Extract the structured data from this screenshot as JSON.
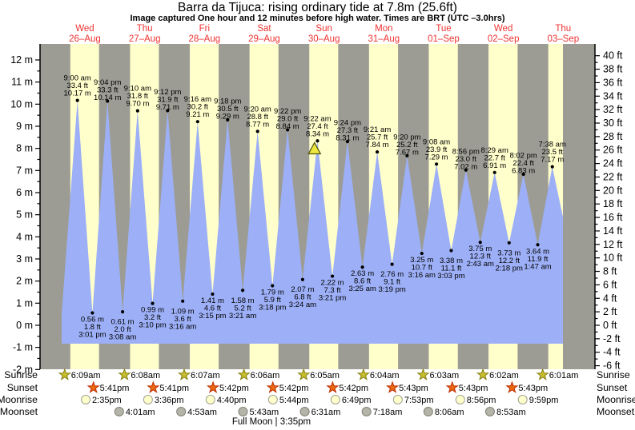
{
  "chart_data": {
    "type": "area",
    "title": "Barra da Tijuca: rising  ordinary tide at 7.8m (25.6ft)",
    "subtitle": "Image captured One hour and 12 minutes before high water. Times are BRT (UTC –3.0hrs)",
    "days": [
      {
        "weekday": "Wed",
        "date": "26–Aug"
      },
      {
        "weekday": "Thu",
        "date": "27–Aug"
      },
      {
        "weekday": "Fri",
        "date": "28–Aug"
      },
      {
        "weekday": "Sat",
        "date": "29–Aug"
      },
      {
        "weekday": "Sun",
        "date": "30–Aug"
      },
      {
        "weekday": "Mon",
        "date": "31–Aug"
      },
      {
        "weekday": "Tue",
        "date": "01–Sep"
      },
      {
        "weekday": "Wed",
        "date": "02–Sep"
      },
      {
        "weekday": "Thu",
        "date": "03–Sep"
      }
    ],
    "y_axis_left": {
      "unit": "m",
      "min": -2,
      "max": 12,
      "step": 1
    },
    "y_axis_right": {
      "unit": "ft",
      "min": -6,
      "max": 40,
      "step": 2
    },
    "tide_events": [
      {
        "type": "high",
        "day": 0,
        "time": "9:00 am",
        "ft": "33.4",
        "m": "10.17"
      },
      {
        "type": "low",
        "day": 0,
        "time": "3:01 pm",
        "ft": "1.8",
        "m": "0.56"
      },
      {
        "type": "high",
        "day": 0,
        "time": "9:04 pm",
        "ft": "33.3",
        "m": "10.14"
      },
      {
        "type": "low",
        "day": 1,
        "time": "3:08 am",
        "ft": "2.0",
        "m": "0.61"
      },
      {
        "type": "high",
        "day": 1,
        "time": "9:10 am",
        "ft": "31.8",
        "m": "9.70"
      },
      {
        "type": "low",
        "day": 1,
        "time": "3:10 pm",
        "ft": "3.2",
        "m": "0.99"
      },
      {
        "type": "high",
        "day": 1,
        "time": "9:12 pm",
        "ft": "31.9",
        "m": "9.71"
      },
      {
        "type": "low",
        "day": 2,
        "time": "3:16 am",
        "ft": "3.6",
        "m": "1.09"
      },
      {
        "type": "high",
        "day": 2,
        "time": "9:16 am",
        "ft": "30.2",
        "m": "9.21"
      },
      {
        "type": "low",
        "day": 2,
        "time": "3:15 pm",
        "ft": "4.6",
        "m": "1.41"
      },
      {
        "type": "high",
        "day": 2,
        "time": "9:18 pm",
        "ft": "30.5",
        "m": "9.29"
      },
      {
        "type": "low",
        "day": 3,
        "time": "3:21 am",
        "ft": "5.2",
        "m": "1.58"
      },
      {
        "type": "high",
        "day": 3,
        "time": "9:20 am",
        "ft": "28.8",
        "m": "8.77"
      },
      {
        "type": "low",
        "day": 3,
        "time": "3:18 pm",
        "ft": "5.9",
        "m": "1.79"
      },
      {
        "type": "high",
        "day": 3,
        "time": "9:22 pm",
        "ft": "29.0",
        "m": "8.84"
      },
      {
        "type": "low",
        "day": 4,
        "time": "3:24 am",
        "ft": "6.8",
        "m": "2.07"
      },
      {
        "type": "high",
        "day": 4,
        "time": "9:22 am",
        "ft": "27.4",
        "m": "8.34"
      },
      {
        "type": "low",
        "day": 4,
        "time": "3:21 pm",
        "ft": "7.3",
        "m": "2.22"
      },
      {
        "type": "high",
        "day": 4,
        "time": "9:24 pm",
        "ft": "27.3",
        "m": "8.31"
      },
      {
        "type": "low",
        "day": 5,
        "time": "3:25 am",
        "ft": "8.6",
        "m": "2.63"
      },
      {
        "type": "high",
        "day": 5,
        "time": "9:21 am",
        "ft": "25.7",
        "m": "7.84"
      },
      {
        "type": "low",
        "day": 5,
        "time": "3:19 pm",
        "ft": "9.1",
        "m": "2.76"
      },
      {
        "type": "high",
        "day": 5,
        "time": "9:20 pm",
        "ft": "25.2",
        "m": "7.67"
      },
      {
        "type": "low",
        "day": 6,
        "time": "3:16 am",
        "ft": "10.7",
        "m": "3.25"
      },
      {
        "type": "high",
        "day": 6,
        "time": "9:08 am",
        "ft": "23.9",
        "m": "7.29"
      },
      {
        "type": "low",
        "day": 6,
        "time": "3:03 pm",
        "ft": "11.1",
        "m": "3.38"
      },
      {
        "type": "high",
        "day": 6,
        "time": "8:56 pm",
        "ft": "23.0",
        "m": "7.02"
      },
      {
        "type": "low",
        "day": 7,
        "time": "2:43 am",
        "ft": "12.3",
        "m": "3.75"
      },
      {
        "type": "high",
        "day": 7,
        "time": "8:29 am",
        "ft": "22.7",
        "m": "6.91"
      },
      {
        "type": "low",
        "day": 7,
        "time": "2:18 pm",
        "ft": "12.2",
        "m": "3.73"
      },
      {
        "type": "high",
        "day": 7,
        "time": "8:02 pm",
        "ft": "22.4",
        "m": "6.83"
      },
      {
        "type": "low",
        "day": 8,
        "time": "1:47 am",
        "ft": "11.9",
        "m": "3.64"
      },
      {
        "type": "high",
        "day": 8,
        "time": "7:38 am",
        "ft": "23.5",
        "m": "7.17"
      }
    ],
    "current_time_marker": {
      "day": 4,
      "time": "8:10 am",
      "below_high": "9:22 am",
      "shape": "triangle"
    },
    "astro": {
      "row_labels": [
        "Sunrise",
        "Sunset",
        "Moonrise",
        "Moonset"
      ],
      "sunrise": [
        {
          "day": 0,
          "time": "6:09am"
        },
        {
          "day": 1,
          "time": "6:08am"
        },
        {
          "day": 2,
          "time": "6:07am"
        },
        {
          "day": 3,
          "time": "6:06am"
        },
        {
          "day": 4,
          "time": "6:05am"
        },
        {
          "day": 5,
          "time": "6:04am"
        },
        {
          "day": 6,
          "time": "6:03am"
        },
        {
          "day": 7,
          "time": "6:02am"
        },
        {
          "day": 8,
          "time": "6:01am"
        }
      ],
      "sunset": [
        {
          "day": 0,
          "time": "5:41pm"
        },
        {
          "day": 1,
          "time": "5:41pm"
        },
        {
          "day": 2,
          "time": "5:42pm"
        },
        {
          "day": 3,
          "time": "5:42pm"
        },
        {
          "day": 4,
          "time": "5:42pm"
        },
        {
          "day": 5,
          "time": "5:43pm"
        },
        {
          "day": 6,
          "time": "5:43pm"
        },
        {
          "day": 7,
          "time": "5:43pm"
        }
      ],
      "moonrise": [
        {
          "day": 0,
          "time": "2:35pm"
        },
        {
          "day": 1,
          "time": "3:36pm"
        },
        {
          "day": 2,
          "time": "4:40pm"
        },
        {
          "day": 3,
          "time": "5:44pm"
        },
        {
          "day": 4,
          "time": "6:49pm"
        },
        {
          "day": 5,
          "time": "7:53pm"
        },
        {
          "day": 6,
          "time": "8:56pm"
        },
        {
          "day": 7,
          "time": "9:59pm"
        }
      ],
      "moonset": [
        {
          "day": 1,
          "time": "4:01am"
        },
        {
          "day": 2,
          "time": "4:53am"
        },
        {
          "day": 3,
          "time": "5:43am"
        },
        {
          "day": 4,
          "time": "6:31am"
        },
        {
          "day": 5,
          "time": "7:18am"
        },
        {
          "day": 6,
          "time": "8:06am"
        },
        {
          "day": 7,
          "time": "8:53am"
        }
      ],
      "moon_phase": {
        "name": "Full Moon",
        "time": "3:35pm"
      }
    },
    "colors": {
      "night_band": "#9c9c94",
      "day_band": "#ffffcc",
      "tide_fill": "#9db0f7",
      "date_red": "#f03232",
      "sunrise_star": "#c8bf2e",
      "sunrise_star_stroke": "#857f12",
      "sunset_star": "#e96a12",
      "sunset_star_stroke": "#bf2b00",
      "moonrise_fill": "#ffffcc",
      "moonrise_stroke": "#a0a090",
      "moonset_fill": "#b4b4a8",
      "moonset_stroke": "#808074",
      "marker_fill": "#ede73f",
      "marker_stroke": "#55550f"
    }
  }
}
